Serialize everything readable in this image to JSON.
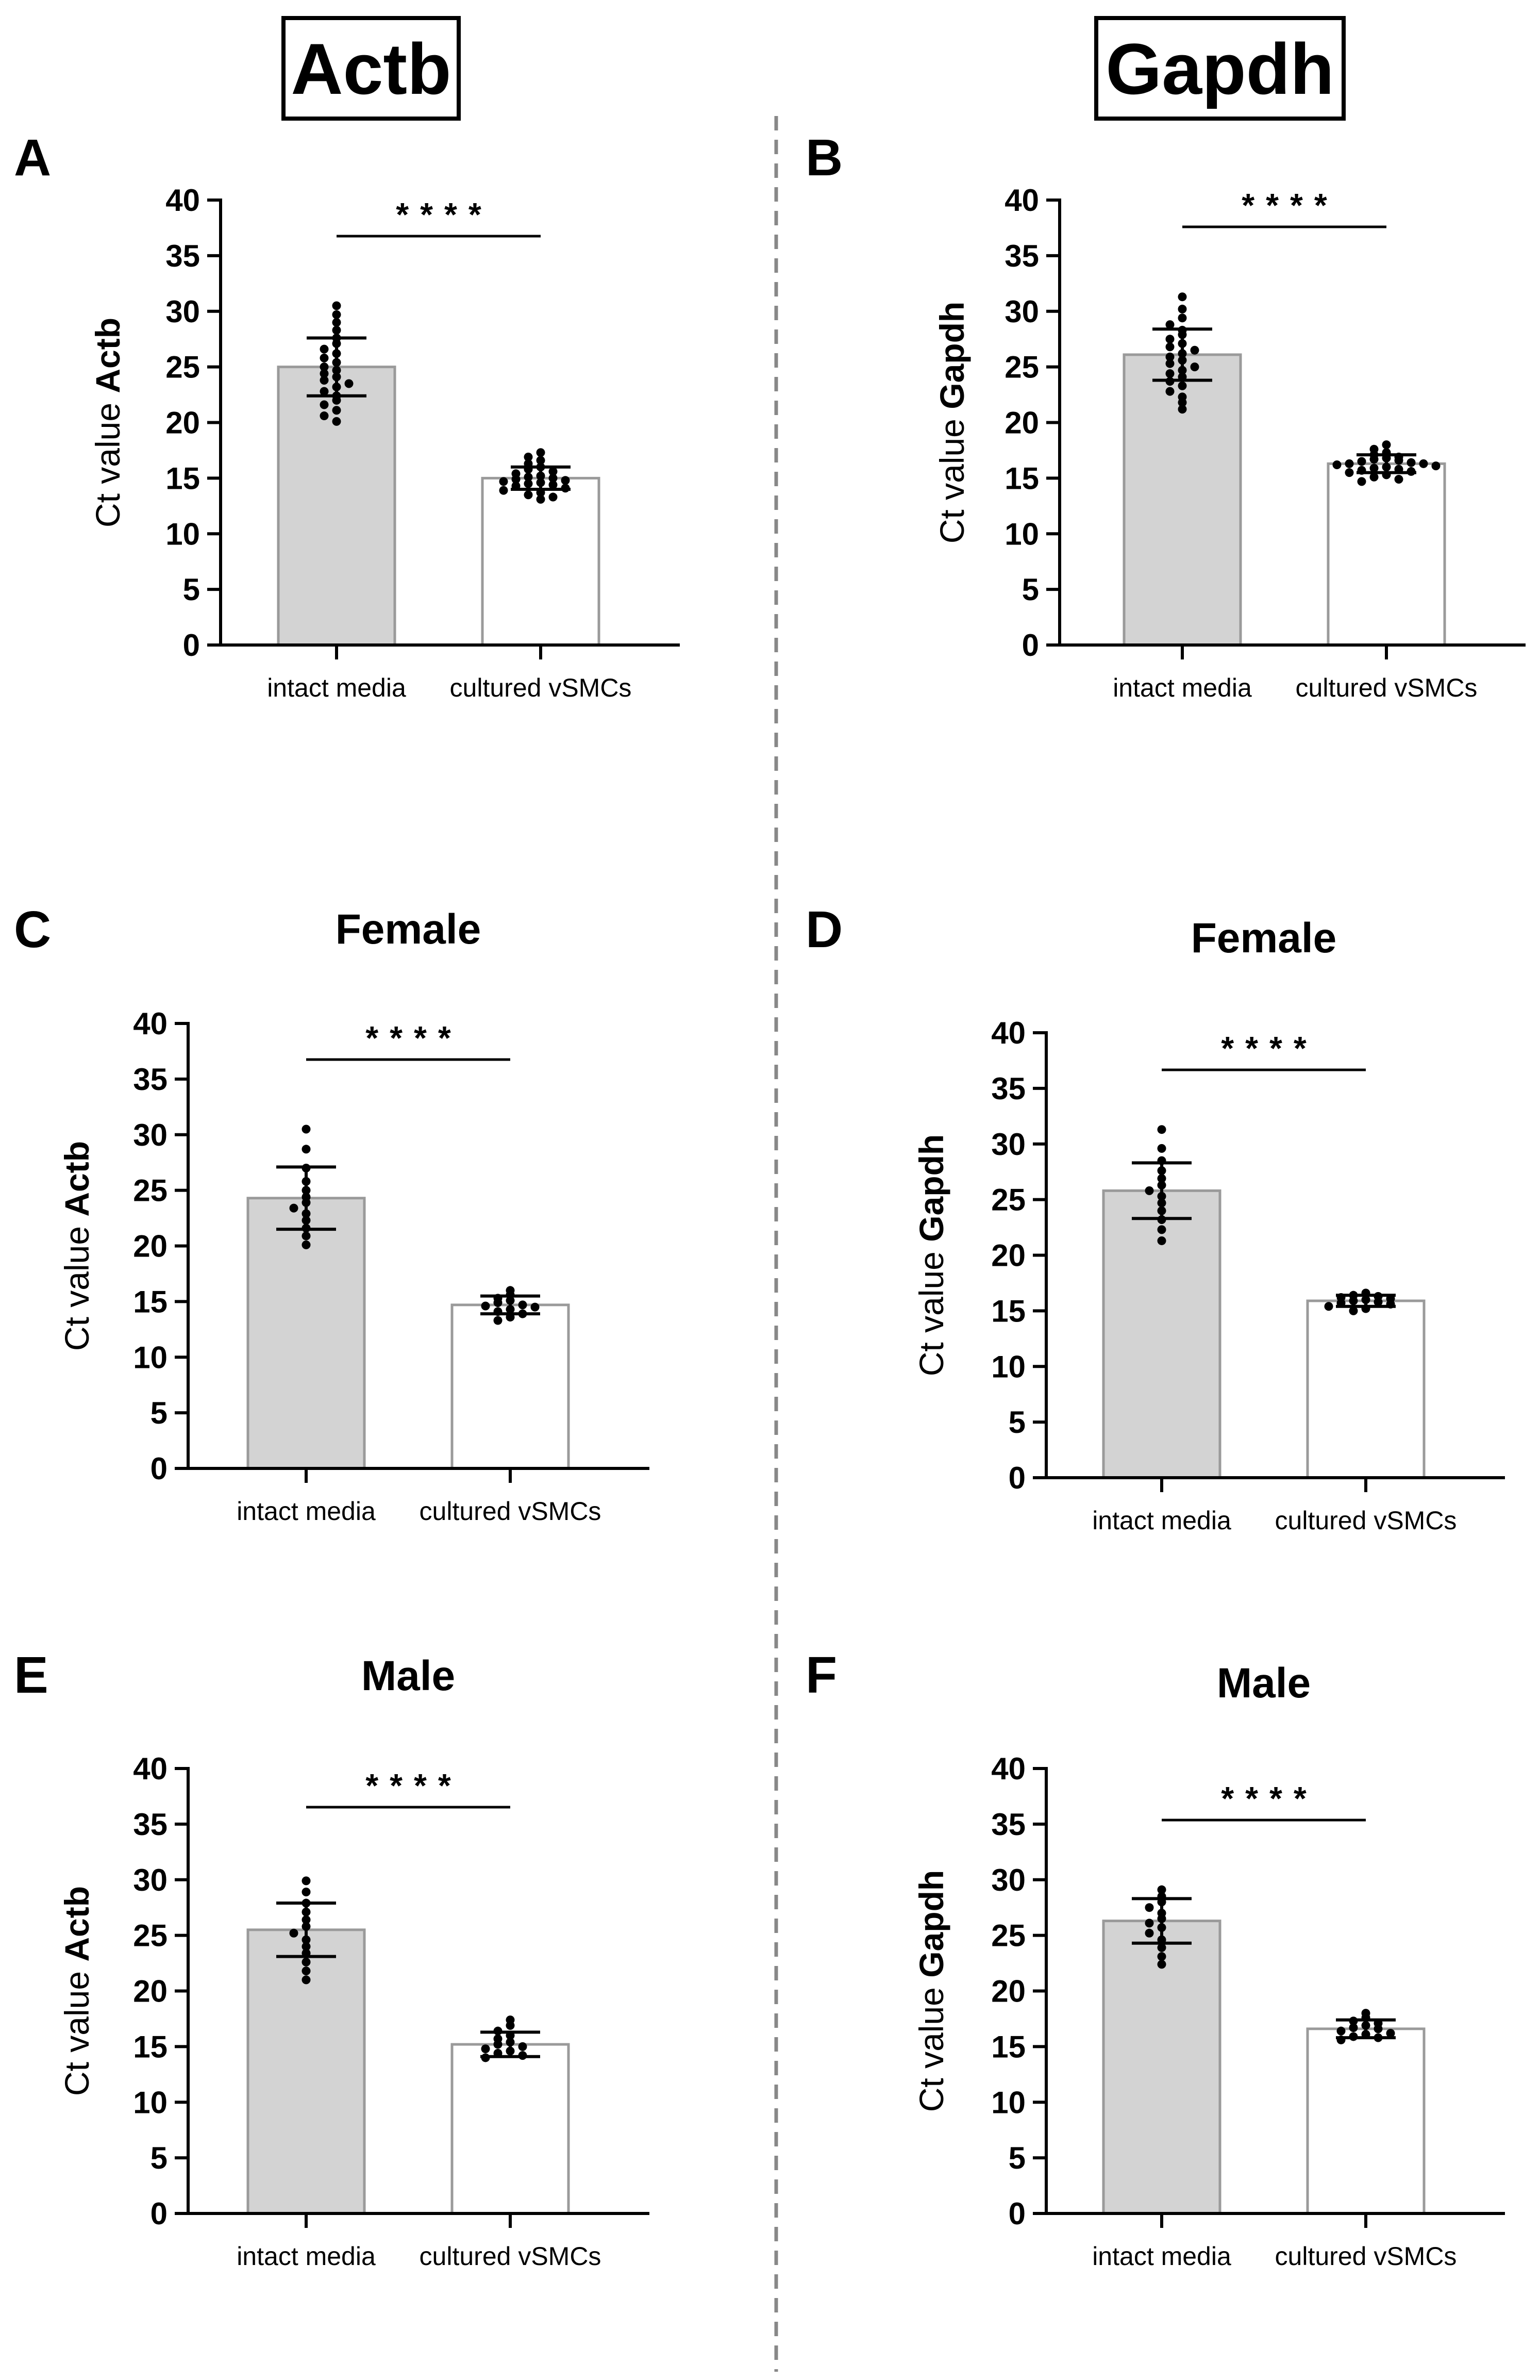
{
  "genes": [
    {
      "id": "actb",
      "label": "Actb"
    },
    {
      "id": "gapdh",
      "label": "Gapdh"
    }
  ],
  "colors": {
    "intact_bar": "#d3d3d3",
    "cultured_bar": "#ffffff",
    "bar_edge": "#9a9a9a",
    "divider": "#888888"
  },
  "chart_data": [
    {
      "panel": "A",
      "title": "",
      "type": "bar",
      "ylabel_prefix": "Ct value",
      "ylabel_gene": "Actb",
      "ylim": [
        0,
        40
      ],
      "yticks": [
        0,
        5,
        10,
        15,
        20,
        25,
        30,
        35,
        40
      ],
      "categories": [
        "intact media",
        "cultured vSMCs"
      ],
      "values": [
        25.0,
        15.0
      ],
      "sd": [
        2.6,
        1.0
      ],
      "points": [
        [
          30.5,
          29.7,
          29.0,
          28.3,
          27.6,
          27.1,
          26.6,
          26.2,
          25.8,
          25.4,
          25.0,
          24.7,
          24.4,
          24.1,
          23.8,
          23.5,
          23.2,
          22.8,
          22.4,
          22.0,
          21.6,
          21.1,
          20.6,
          20.1
        ],
        [
          17.3,
          16.9,
          16.6,
          16.3,
          16.0,
          15.8,
          15.6,
          15.4,
          15.2,
          15.1,
          15.0,
          14.9,
          14.8,
          14.7,
          14.6,
          14.5,
          14.4,
          14.3,
          14.1,
          13.9,
          13.7,
          13.5,
          13.3,
          13.1
        ]
      ],
      "significance": "****"
    },
    {
      "panel": "B",
      "title": "",
      "type": "bar",
      "ylabel_prefix": "Ct value",
      "ylabel_gene": "Gapdh",
      "ylim": [
        0,
        40
      ],
      "yticks": [
        0,
        5,
        10,
        15,
        20,
        25,
        30,
        35,
        40
      ],
      "categories": [
        "intact media",
        "cultured vSMCs"
      ],
      "values": [
        26.1,
        16.3
      ],
      "sd": [
        2.3,
        0.8
      ],
      "points": [
        [
          31.3,
          30.2,
          29.4,
          28.8,
          28.3,
          27.9,
          27.5,
          27.1,
          26.8,
          26.5,
          26.2,
          25.9,
          25.6,
          25.3,
          25.0,
          24.7,
          24.4,
          24.1,
          23.7,
          23.3,
          22.8,
          22.3,
          21.8,
          21.2
        ],
        [
          18.0,
          17.6,
          17.3,
          17.1,
          16.9,
          16.8,
          16.7,
          16.6,
          16.5,
          16.4,
          16.3,
          16.3,
          16.2,
          16.1,
          16.0,
          15.9,
          15.8,
          15.7,
          15.6,
          15.5,
          15.3,
          15.1,
          14.9,
          14.7
        ]
      ],
      "significance": "****"
    },
    {
      "panel": "C",
      "title": "Female",
      "type": "bar",
      "ylabel_prefix": "Ct value",
      "ylabel_gene": "Actb",
      "ylim": [
        0,
        40
      ],
      "yticks": [
        0,
        5,
        10,
        15,
        20,
        25,
        30,
        35,
        40
      ],
      "categories": [
        "intact media",
        "cultured vSMCs"
      ],
      "values": [
        24.3,
        14.7
      ],
      "sd": [
        2.8,
        0.8
      ],
      "points": [
        [
          30.5,
          28.7,
          27.0,
          25.8,
          25.0,
          24.4,
          23.9,
          23.4,
          22.9,
          22.3,
          21.6,
          20.9,
          20.1
        ],
        [
          16.0,
          15.6,
          15.3,
          15.1,
          14.9,
          14.7,
          14.6,
          14.5,
          14.3,
          14.1,
          13.9,
          13.6,
          13.3
        ]
      ],
      "significance": "****"
    },
    {
      "panel": "D",
      "title": "Female",
      "type": "bar",
      "ylabel_prefix": "Ct value",
      "ylabel_gene": "Gapdh",
      "ylim": [
        0,
        40
      ],
      "yticks": [
        0,
        5,
        10,
        15,
        20,
        25,
        30,
        35,
        40
      ],
      "categories": [
        "intact media",
        "cultured vSMCs"
      ],
      "values": [
        25.8,
        15.9
      ],
      "sd": [
        2.5,
        0.5
      ],
      "points": [
        [
          31.3,
          29.6,
          28.5,
          27.6,
          26.9,
          26.3,
          25.8,
          25.3,
          24.7,
          24.0,
          23.2,
          22.3,
          21.3
        ],
        [
          16.6,
          16.4,
          16.3,
          16.2,
          16.1,
          16.0,
          15.9,
          15.8,
          15.7,
          15.6,
          15.4,
          15.2,
          15.0
        ]
      ],
      "significance": "****"
    },
    {
      "panel": "E",
      "title": "Male",
      "type": "bar",
      "ylabel_prefix": "Ct value",
      "ylabel_gene": "Actb",
      "ylim": [
        0,
        40
      ],
      "yticks": [
        0,
        5,
        10,
        15,
        20,
        25,
        30,
        35,
        40
      ],
      "categories": [
        "intact media",
        "cultured vSMCs"
      ],
      "values": [
        25.5,
        15.2
      ],
      "sd": [
        2.4,
        1.1
      ],
      "points": [
        [
          29.9,
          28.9,
          27.9,
          27.1,
          26.4,
          25.8,
          25.2,
          24.6,
          24.0,
          23.4,
          22.6,
          21.8,
          21.0
        ],
        [
          17.4,
          16.9,
          16.4,
          16.0,
          15.7,
          15.4,
          15.2,
          15.0,
          14.8,
          14.6,
          14.4,
          14.2,
          14.0
        ]
      ],
      "significance": "****"
    },
    {
      "panel": "F",
      "title": "Male",
      "type": "bar",
      "ylabel_prefix": "Ct value",
      "ylabel_gene": "Gapdh",
      "ylim": [
        0,
        40
      ],
      "yticks": [
        0,
        5,
        10,
        15,
        20,
        25,
        30,
        35,
        40
      ],
      "categories": [
        "intact media",
        "cultured vSMCs"
      ],
      "values": [
        26.3,
        16.6
      ],
      "sd": [
        2.0,
        0.8
      ],
      "points": [
        [
          29.1,
          28.5,
          28.0,
          27.5,
          27.0,
          26.5,
          26.1,
          25.7,
          25.2,
          24.6,
          23.9,
          23.1,
          22.4
        ],
        [
          18.0,
          17.6,
          17.3,
          17.1,
          16.9,
          16.7,
          16.6,
          16.4,
          16.2,
          16.1,
          15.9,
          15.8,
          15.6
        ]
      ],
      "significance": "****"
    }
  ]
}
